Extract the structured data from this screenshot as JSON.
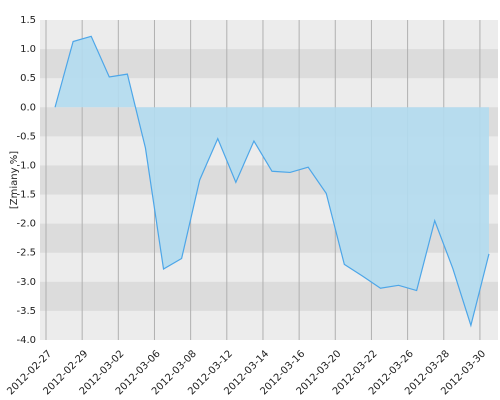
{
  "chart_data": {
    "type": "area",
    "y_label": "[Zmiany %]",
    "categories": [
      "2012-02-27",
      null,
      "2012-02-29",
      null,
      "2012-03-02",
      null,
      "2012-03-06",
      null,
      "2012-03-08",
      null,
      "2012-03-12",
      null,
      "2012-03-14",
      null,
      "2012-03-16",
      null,
      "2012-03-20",
      null,
      "2012-03-22",
      null,
      "2012-03-26",
      null,
      "2012-03-28",
      null,
      "2012-03-30"
    ],
    "values": [
      0.0,
      1.13,
      1.22,
      0.52,
      0.57,
      -0.7,
      -2.78,
      -2.6,
      -1.25,
      -0.54,
      -1.29,
      -0.58,
      -1.1,
      -1.12,
      -1.03,
      -1.48,
      -2.7,
      -2.9,
      -3.11,
      -3.06,
      -3.15,
      -1.95,
      -2.77,
      -3.75,
      -2.52
    ],
    "color": "#4da6e8",
    "fill": "#b3dcef",
    "ylim": [
      -4.0,
      1.5
    ],
    "yticks": [
      {
        "value": -4.0,
        "label": "-4.0"
      },
      -3.5,
      {
        "value": -3.0,
        "label": "-3.0"
      },
      -2.5,
      {
        "value": -2.0,
        "label": "-2.0"
      },
      -1.5,
      {
        "value": -1.0,
        "label": "-1.0"
      },
      -0.5,
      {
        "value": 0.0,
        "label": "0.0"
      },
      0.5,
      {
        "value": 1.0,
        "label": "1.0"
      },
      1.5
    ],
    "grid": true
  }
}
